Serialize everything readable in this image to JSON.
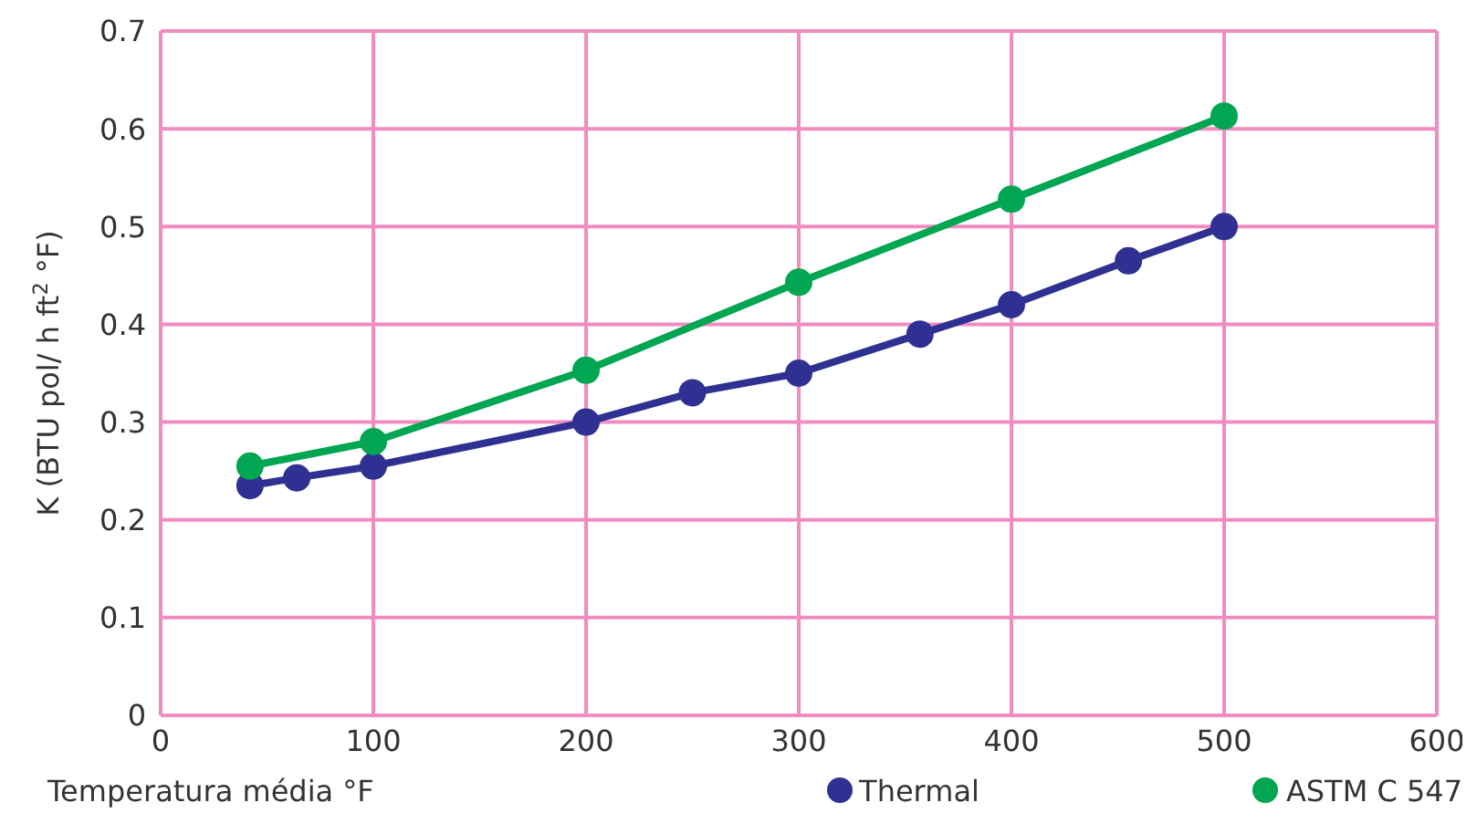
{
  "chart_data": {
    "type": "line",
    "xlabel": "Temperatura média °F",
    "ylabel": "K (BTU pol/ h ft$^{2}$ °F)",
    "xlim": [
      0,
      600
    ],
    "xticks": [
      0,
      100,
      200,
      300,
      400,
      500,
      600
    ],
    "ylim": [
      0,
      0.7
    ],
    "yticks": [
      0,
      0.1,
      0.2,
      0.3,
      0.4,
      0.5,
      0.6,
      0.7
    ],
    "grid": true,
    "legend": "bottom",
    "marker": "circle",
    "line_style": "solid",
    "series": [
      {
        "name": "Thermal",
        "color": "#2e3192",
        "x": [
          42,
          64,
          100,
          200,
          250,
          300,
          357,
          400,
          455,
          500
        ],
        "values": [
          0.235,
          0.243,
          0.255,
          0.3,
          0.33,
          0.35,
          0.39,
          0.42,
          0.465,
          0.5
        ]
      },
      {
        "name": "ASTM C 547",
        "color": "#00a651",
        "x": [
          42,
          100,
          200,
          300,
          400,
          500
        ],
        "values": [
          0.255,
          0.28,
          0.353,
          0.443,
          0.528,
          0.613
        ]
      }
    ]
  }
}
